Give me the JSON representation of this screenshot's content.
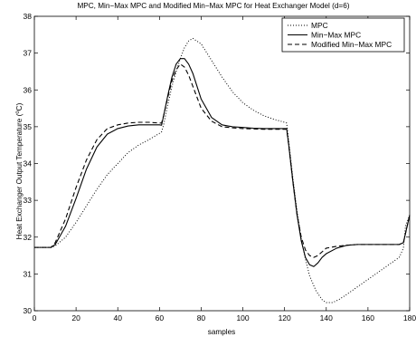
{
  "chart_data": {
    "type": "line",
    "title": "MPC, Min−Max MPC and Modified Min−Max MPC for Heat Exchanger Model (d=6)",
    "xlabel": "samples",
    "ylabel_main": "Heat Exchanger Output Temperature (",
    "ylabel_sup": "o",
    "ylabel_unit": "C)",
    "xlim": [
      0,
      180
    ],
    "ylim": [
      30,
      38
    ],
    "xticks": [
      0,
      20,
      40,
      60,
      80,
      100,
      120,
      140,
      160,
      180
    ],
    "yticks": [
      30,
      31,
      32,
      33,
      34,
      35,
      36,
      37,
      38
    ],
    "grid": false,
    "legend_position": "top-right",
    "series": [
      {
        "name": "MPC",
        "style": "dotted",
        "x": [
          0,
          8,
          10,
          15,
          20,
          25,
          30,
          35,
          40,
          45,
          50,
          55,
          60,
          61,
          62,
          64,
          66,
          68,
          70,
          72,
          74,
          76,
          80,
          85,
          90,
          95,
          100,
          105,
          110,
          115,
          120,
          121,
          122,
          124,
          126,
          128,
          130,
          132,
          135,
          138,
          140,
          143,
          146,
          150,
          155,
          160,
          165,
          170,
          175,
          177,
          178,
          180
        ],
        "y": [
          31.72,
          31.72,
          31.76,
          32.0,
          32.4,
          32.85,
          33.3,
          33.7,
          34.0,
          34.3,
          34.5,
          34.65,
          34.82,
          34.86,
          35.05,
          35.6,
          36.1,
          36.5,
          36.85,
          37.15,
          37.33,
          37.4,
          37.25,
          36.8,
          36.35,
          35.95,
          35.65,
          35.45,
          35.3,
          35.2,
          35.12,
          35.1,
          34.6,
          33.6,
          32.7,
          31.95,
          31.4,
          30.95,
          30.55,
          30.3,
          30.22,
          30.22,
          30.3,
          30.45,
          30.65,
          30.85,
          31.05,
          31.25,
          31.45,
          31.7,
          32.3,
          32.6
        ]
      },
      {
        "name": "Min−Max MPC",
        "style": "solid",
        "x": [
          0,
          8,
          10,
          15,
          20,
          25,
          30,
          35,
          40,
          45,
          50,
          55,
          60,
          61,
          62,
          64,
          66,
          68,
          70,
          72,
          74,
          76,
          78,
          80,
          85,
          90,
          95,
          100,
          105,
          110,
          115,
          120,
          121,
          122,
          124,
          126,
          128,
          130,
          132,
          134,
          136,
          138,
          140,
          145,
          150,
          155,
          160,
          165,
          170,
          175,
          177,
          178,
          180
        ],
        "y": [
          31.72,
          31.72,
          31.8,
          32.3,
          33.05,
          33.85,
          34.45,
          34.8,
          34.95,
          35.02,
          35.05,
          35.05,
          35.05,
          35.04,
          35.3,
          35.85,
          36.35,
          36.7,
          36.85,
          36.85,
          36.7,
          36.45,
          36.1,
          35.75,
          35.25,
          35.05,
          35.0,
          34.98,
          34.96,
          34.95,
          34.95,
          34.95,
          34.95,
          34.5,
          33.5,
          32.6,
          31.9,
          31.45,
          31.25,
          31.2,
          31.3,
          31.45,
          31.55,
          31.7,
          31.78,
          31.8,
          31.8,
          31.8,
          31.8,
          31.8,
          31.85,
          32.1,
          32.6
        ]
      },
      {
        "name": "Modified Min−Max MPC",
        "style": "dashed",
        "x": [
          0,
          8,
          10,
          15,
          20,
          25,
          30,
          35,
          40,
          45,
          50,
          55,
          60,
          61,
          62,
          64,
          66,
          68,
          70,
          72,
          74,
          76,
          78,
          80,
          85,
          90,
          95,
          100,
          105,
          110,
          115,
          120,
          121,
          122,
          124,
          126,
          128,
          130,
          132,
          134,
          136,
          138,
          140,
          145,
          150,
          155,
          160,
          165,
          170,
          175,
          177,
          178,
          180
        ],
        "y": [
          31.72,
          31.72,
          31.85,
          32.5,
          33.35,
          34.1,
          34.65,
          34.95,
          35.05,
          35.1,
          35.12,
          35.12,
          35.1,
          35.1,
          35.3,
          35.8,
          36.25,
          36.55,
          36.7,
          36.62,
          36.4,
          36.1,
          35.8,
          35.5,
          35.15,
          35.0,
          34.97,
          34.95,
          34.94,
          34.93,
          34.93,
          34.93,
          34.93,
          34.5,
          33.5,
          32.6,
          32.0,
          31.65,
          31.5,
          31.45,
          31.5,
          31.6,
          31.7,
          31.75,
          31.78,
          31.8,
          31.8,
          31.8,
          31.8,
          31.8,
          31.85,
          32.1,
          32.6
        ]
      }
    ]
  }
}
